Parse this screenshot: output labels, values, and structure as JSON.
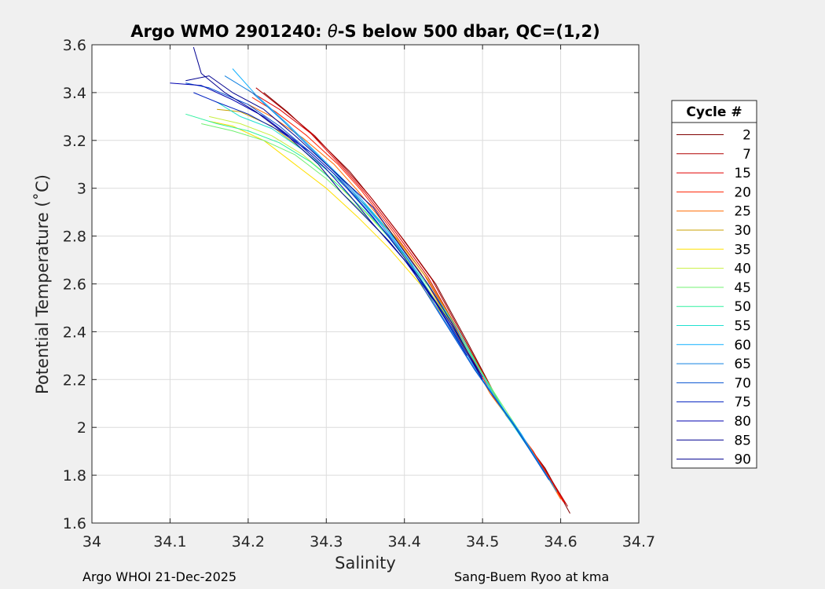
{
  "chart_data": {
    "type": "line",
    "title_prefix": "Argo WMO 2901240: ",
    "title_symbol": "θ",
    "title_suffix": "-S below 500 dbar,  QC=(1,2)",
    "xlabel": "Salinity",
    "ylabel": "Potential Temperature (˚C)",
    "xlim": [
      34.0,
      34.7
    ],
    "ylim": [
      1.6,
      3.6
    ],
    "xticks": [
      "34",
      "34.1",
      "34.2",
      "34.3",
      "34.4",
      "34.5",
      "34.6",
      "34.7"
    ],
    "yticks": [
      "1.6",
      "1.8",
      "2",
      "2.2",
      "2.4",
      "2.6",
      "2.8",
      "3",
      "3.2",
      "3.4",
      "3.6"
    ],
    "grid": true,
    "legend": {
      "title": "Cycle #",
      "placement": "right",
      "entries": [
        "2",
        "7",
        "15",
        "20",
        "25",
        "30",
        "35",
        "40",
        "45",
        "50",
        "55",
        "60",
        "65",
        "70",
        "75",
        "80",
        "85",
        "90"
      ],
      "colors": [
        "#7f0000",
        "#b00000",
        "#e00000",
        "#ff2000",
        "#ff6a00",
        "#c8a000",
        "#ffe000",
        "#c8f040",
        "#70f070",
        "#30f0a0",
        "#20e0d0",
        "#10b0ff",
        "#1080e0",
        "#0050d0",
        "#0020c0",
        "#0000b0",
        "#000090",
        "#00008f"
      ]
    },
    "series": [
      {
        "cycle": 2,
        "color": "#7f0000",
        "points": [
          [
            34.612,
            1.64
          ],
          [
            34.58,
            1.83
          ],
          [
            34.53,
            2.05
          ],
          [
            34.48,
            2.36
          ],
          [
            34.44,
            2.6
          ],
          [
            34.4,
            2.78
          ],
          [
            34.36,
            2.95
          ],
          [
            34.33,
            3.07
          ],
          [
            34.29,
            3.2
          ],
          [
            34.25,
            3.32
          ],
          [
            34.22,
            3.4
          ]
        ]
      },
      {
        "cycle": 7,
        "color": "#b00000",
        "points": [
          [
            34.609,
            1.67
          ],
          [
            34.575,
            1.85
          ],
          [
            34.525,
            2.08
          ],
          [
            34.475,
            2.38
          ],
          [
            34.435,
            2.62
          ],
          [
            34.395,
            2.8
          ],
          [
            34.355,
            2.97
          ],
          [
            34.325,
            3.08
          ],
          [
            34.285,
            3.22
          ],
          [
            34.245,
            3.33
          ],
          [
            34.21,
            3.42
          ]
        ]
      },
      {
        "cycle": 15,
        "color": "#e00000",
        "points": [
          [
            34.606,
            1.68
          ],
          [
            34.57,
            1.87
          ],
          [
            34.52,
            2.1
          ],
          [
            34.47,
            2.4
          ],
          [
            34.43,
            2.63
          ],
          [
            34.39,
            2.81
          ],
          [
            34.35,
            2.98
          ],
          [
            34.32,
            3.09
          ],
          [
            34.28,
            3.23
          ],
          [
            34.24,
            3.33
          ],
          [
            34.2,
            3.41
          ]
        ]
      },
      {
        "cycle": 20,
        "color": "#ff2000",
        "points": [
          [
            34.603,
            1.69
          ],
          [
            34.565,
            1.9
          ],
          [
            34.515,
            2.12
          ],
          [
            34.465,
            2.42
          ],
          [
            34.425,
            2.64
          ],
          [
            34.385,
            2.82
          ],
          [
            34.345,
            2.99
          ],
          [
            34.315,
            3.1
          ],
          [
            34.275,
            3.22
          ],
          [
            34.235,
            3.32
          ],
          [
            34.205,
            3.38
          ]
        ]
      },
      {
        "cycle": 25,
        "color": "#ff6a00",
        "points": [
          [
            34.6,
            1.7
          ],
          [
            34.56,
            1.92
          ],
          [
            34.51,
            2.14
          ],
          [
            34.46,
            2.43
          ],
          [
            34.42,
            2.65
          ],
          [
            34.38,
            2.83
          ],
          [
            34.34,
            2.99
          ],
          [
            34.31,
            3.1
          ],
          [
            34.27,
            3.21
          ],
          [
            34.23,
            3.3
          ],
          [
            34.2,
            3.35
          ]
        ]
      },
      {
        "cycle": 30,
        "color": "#c8a000",
        "points": [
          [
            34.52,
            2.11
          ],
          [
            34.47,
            2.4
          ],
          [
            34.43,
            2.62
          ],
          [
            34.39,
            2.79
          ],
          [
            34.35,
            2.93
          ],
          [
            34.31,
            3.05
          ],
          [
            34.27,
            3.16
          ],
          [
            34.23,
            3.26
          ],
          [
            34.19,
            3.32
          ],
          [
            34.16,
            3.33
          ]
        ]
      },
      {
        "cycle": 35,
        "color": "#ffe000",
        "points": [
          [
            34.5,
            2.2
          ],
          [
            34.46,
            2.42
          ],
          [
            34.42,
            2.6
          ],
          [
            34.38,
            2.75
          ],
          [
            34.34,
            2.88
          ],
          [
            34.3,
            3.0
          ],
          [
            34.26,
            3.1
          ],
          [
            34.22,
            3.2
          ],
          [
            34.18,
            3.26
          ],
          [
            34.15,
            3.28
          ]
        ]
      },
      {
        "cycle": 40,
        "color": "#c8f040",
        "points": [
          [
            34.52,
            2.12
          ],
          [
            34.47,
            2.38
          ],
          [
            34.43,
            2.58
          ],
          [
            34.39,
            2.76
          ],
          [
            34.35,
            2.9
          ],
          [
            34.31,
            3.03
          ],
          [
            34.27,
            3.14
          ],
          [
            34.23,
            3.22
          ],
          [
            34.19,
            3.27
          ],
          [
            34.15,
            3.3
          ]
        ]
      },
      {
        "cycle": 45,
        "color": "#70f070",
        "points": [
          [
            34.55,
            1.97
          ],
          [
            34.5,
            2.22
          ],
          [
            34.46,
            2.44
          ],
          [
            34.42,
            2.62
          ],
          [
            34.38,
            2.78
          ],
          [
            34.34,
            2.92
          ],
          [
            34.3,
            3.04
          ],
          [
            34.26,
            3.14
          ],
          [
            34.22,
            3.2
          ],
          [
            34.18,
            3.24
          ],
          [
            34.14,
            3.27
          ]
        ]
      },
      {
        "cycle": 50,
        "color": "#30f0a0",
        "points": [
          [
            34.53,
            2.06
          ],
          [
            34.48,
            2.33
          ],
          [
            34.44,
            2.55
          ],
          [
            34.4,
            2.72
          ],
          [
            34.36,
            2.87
          ],
          [
            34.32,
            3.0
          ],
          [
            34.28,
            3.11
          ],
          [
            34.24,
            3.19
          ],
          [
            34.2,
            3.24
          ],
          [
            34.16,
            3.27
          ],
          [
            34.12,
            3.31
          ]
        ]
      },
      {
        "cycle": 55,
        "color": "#20e0d0",
        "points": [
          [
            34.57,
            1.86
          ],
          [
            34.52,
            2.1
          ],
          [
            34.47,
            2.4
          ],
          [
            34.43,
            2.6
          ],
          [
            34.39,
            2.78
          ],
          [
            34.35,
            2.93
          ],
          [
            34.31,
            3.05
          ],
          [
            34.27,
            3.16
          ],
          [
            34.23,
            3.25
          ],
          [
            34.19,
            3.3
          ],
          [
            34.16,
            3.36
          ]
        ]
      },
      {
        "cycle": 60,
        "color": "#10b0ff",
        "points": [
          [
            34.595,
            1.73
          ],
          [
            34.55,
            1.97
          ],
          [
            34.5,
            2.2
          ],
          [
            34.45,
            2.47
          ],
          [
            34.41,
            2.68
          ],
          [
            34.37,
            2.86
          ],
          [
            34.33,
            3.01
          ],
          [
            34.29,
            3.14
          ],
          [
            34.25,
            3.27
          ],
          [
            34.21,
            3.39
          ],
          [
            34.18,
            3.5
          ]
        ]
      },
      {
        "cycle": 65,
        "color": "#1080e0",
        "points": [
          [
            34.59,
            1.76
          ],
          [
            34.545,
            1.99
          ],
          [
            34.495,
            2.22
          ],
          [
            34.445,
            2.48
          ],
          [
            34.405,
            2.7
          ],
          [
            34.365,
            2.87
          ],
          [
            34.325,
            3.02
          ],
          [
            34.285,
            3.15
          ],
          [
            34.245,
            3.28
          ],
          [
            34.205,
            3.4
          ],
          [
            34.17,
            3.47
          ]
        ]
      },
      {
        "cycle": 70,
        "color": "#0050d0",
        "points": [
          [
            34.585,
            1.78
          ],
          [
            34.54,
            2.01
          ],
          [
            34.49,
            2.24
          ],
          [
            34.44,
            2.5
          ],
          [
            34.4,
            2.71
          ],
          [
            34.36,
            2.88
          ],
          [
            34.32,
            3.03
          ],
          [
            34.28,
            3.15
          ],
          [
            34.24,
            3.26
          ],
          [
            34.2,
            3.35
          ],
          [
            34.15,
            3.42
          ],
          [
            34.12,
            3.44
          ]
        ]
      },
      {
        "cycle": 75,
        "color": "#0020c0",
        "points": [
          [
            34.5,
            2.2
          ],
          [
            34.46,
            2.42
          ],
          [
            34.42,
            2.62
          ],
          [
            34.38,
            2.8
          ],
          [
            34.34,
            2.95
          ],
          [
            34.31,
            3.06
          ],
          [
            34.28,
            3.15
          ],
          [
            34.24,
            3.24
          ],
          [
            34.2,
            3.31
          ],
          [
            34.16,
            3.36
          ],
          [
            34.13,
            3.4
          ]
        ]
      },
      {
        "cycle": 80,
        "color": "#0000b0",
        "points": [
          [
            34.48,
            2.3
          ],
          [
            34.44,
            2.52
          ],
          [
            34.4,
            2.7
          ],
          [
            34.36,
            2.85
          ],
          [
            34.33,
            2.97
          ],
          [
            34.3,
            3.08
          ],
          [
            34.26,
            3.2
          ],
          [
            34.22,
            3.3
          ],
          [
            34.18,
            3.37
          ],
          [
            34.14,
            3.43
          ],
          [
            34.1,
            3.44
          ]
        ]
      },
      {
        "cycle": 85,
        "color": "#000090",
        "points": [
          [
            34.5,
            2.21
          ],
          [
            34.46,
            2.43
          ],
          [
            34.42,
            2.62
          ],
          [
            34.38,
            2.78
          ],
          [
            34.35,
            2.88
          ],
          [
            34.32,
            2.98
          ],
          [
            34.29,
            3.1
          ],
          [
            34.25,
            3.22
          ],
          [
            34.21,
            3.32
          ],
          [
            34.17,
            3.4
          ],
          [
            34.14,
            3.48
          ],
          [
            34.13,
            3.59
          ]
        ]
      },
      {
        "cycle": 90,
        "color": "#00008f",
        "points": [
          [
            34.5,
            2.2
          ],
          [
            34.46,
            2.44
          ],
          [
            34.43,
            2.6
          ],
          [
            34.39,
            2.78
          ],
          [
            34.36,
            2.92
          ],
          [
            34.33,
            3.01
          ],
          [
            34.3,
            3.1
          ],
          [
            34.26,
            3.22
          ],
          [
            34.22,
            3.33
          ],
          [
            34.18,
            3.4
          ],
          [
            34.15,
            3.47
          ],
          [
            34.12,
            3.45
          ]
        ]
      }
    ]
  },
  "footer": {
    "left": "Argo WHOI 21-Dec-2025",
    "right": "Sang-Buem Ryoo at kma"
  }
}
